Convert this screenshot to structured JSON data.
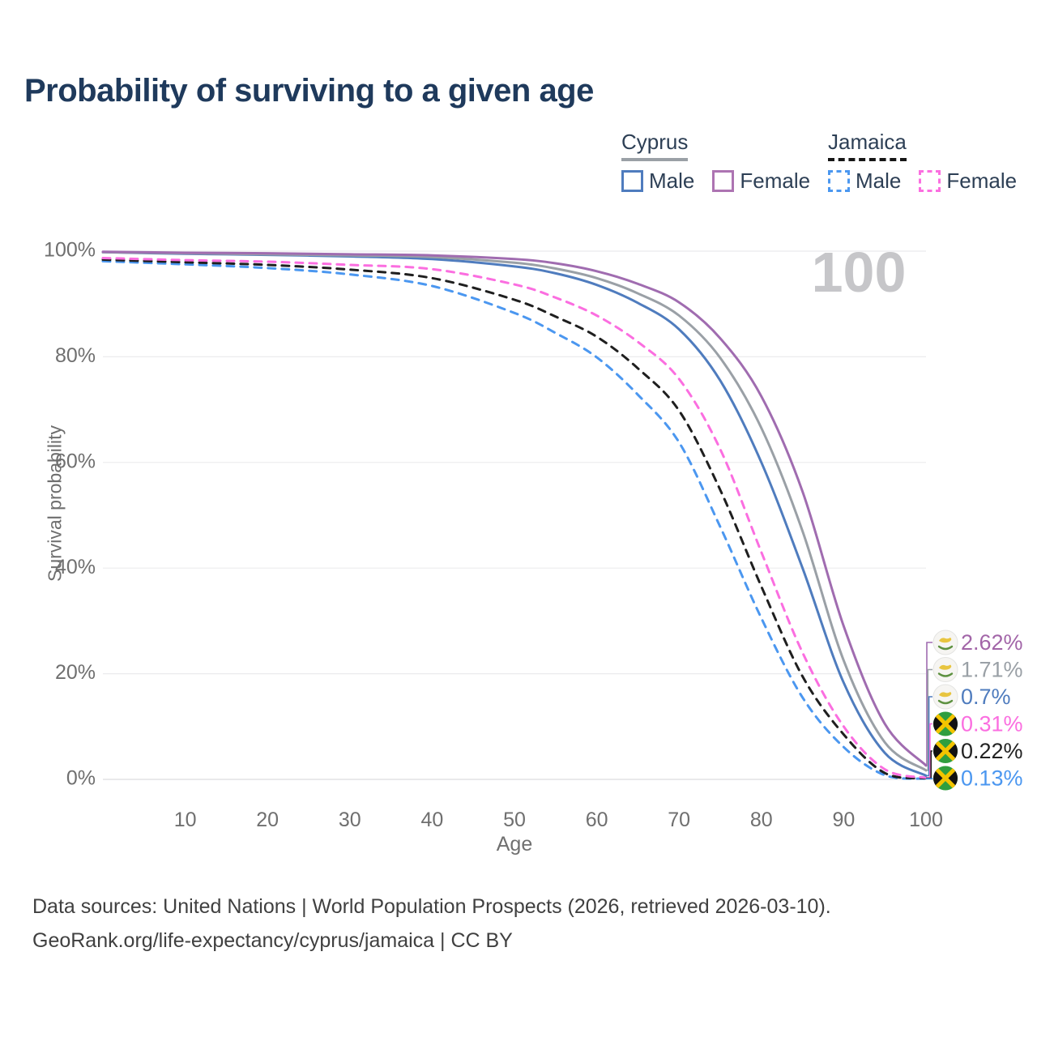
{
  "title": "Probability of surviving to a given age",
  "legend": {
    "groups": [
      {
        "label": "Cyprus",
        "line_style": "solid",
        "underline_color": "#9aa0a6",
        "items": [
          {
            "label": "Male",
            "color": "#4f7cbe"
          },
          {
            "label": "Female",
            "color": "#ad74b2"
          }
        ]
      },
      {
        "label": "Jamaica",
        "line_style": "dashed",
        "underline_color": "#161616",
        "items": [
          {
            "label": "Male",
            "color": "#4b97f0"
          },
          {
            "label": "Female",
            "color": "#fb6ee0"
          }
        ]
      }
    ]
  },
  "age_indicator": "100",
  "chart_data": {
    "type": "line",
    "title": "Probability of surviving to a given age",
    "x": [
      0,
      10,
      20,
      30,
      40,
      50,
      55,
      60,
      65,
      70,
      75,
      80,
      85,
      90,
      95,
      100
    ],
    "x_axis": {
      "label": "Age",
      "min": 0,
      "max": 100,
      "ticks": [
        10,
        20,
        30,
        40,
        50,
        60,
        70,
        80,
        90,
        100
      ]
    },
    "y_axis": {
      "label": "Survival probability",
      "min": 0,
      "max": 100,
      "ticks": [
        "0%",
        "20%",
        "40%",
        "60%",
        "80%",
        "100%"
      ],
      "tick_values": [
        0,
        20,
        40,
        60,
        80,
        100
      ]
    },
    "grid": true,
    "legend_position": "top-right",
    "series": [
      {
        "name": "Cyprus Female",
        "country": "cyprus",
        "sex": "female",
        "dash": "solid",
        "color": "#a06cb0",
        "label_color": "#a265a8",
        "end_label": "2.62%",
        "flag": "cyprus",
        "values": [
          99.9,
          99.7,
          99.6,
          99.4,
          99.2,
          98.5,
          97.7,
          96.2,
          93.8,
          90.3,
          83.5,
          72.5,
          54.5,
          29.0,
          10.5,
          2.62
        ]
      },
      {
        "name": "Cyprus Both sexes",
        "country": "cyprus",
        "sex": "both",
        "dash": "solid",
        "color": "#9aa0a6",
        "label_color": "#9aa0a6",
        "end_label": "1.71%",
        "flag": "cyprus",
        "values": [
          99.8,
          99.6,
          99.4,
          99.2,
          98.9,
          97.8,
          96.7,
          94.9,
          92.0,
          87.8,
          79.8,
          66.5,
          47.0,
          22.5,
          7.0,
          1.71
        ]
      },
      {
        "name": "Cyprus Male",
        "country": "cyprus",
        "sex": "male",
        "dash": "solid",
        "color": "#4f7cbe",
        "label_color": "#4f7cbe",
        "end_label": "0.7%",
        "flag": "cyprus",
        "values": [
          99.8,
          99.5,
          99.3,
          99.0,
          98.5,
          97.1,
          95.8,
          93.6,
          90.2,
          85.2,
          75.5,
          60.0,
          40.0,
          18.3,
          5.0,
          0.7
        ]
      },
      {
        "name": "Jamaica Female",
        "country": "jamaica",
        "sex": "female",
        "dash": "dashed",
        "color": "#fb6ee0",
        "label_color": "#fb6ee0",
        "end_label": "0.31%",
        "flag": "jamaica",
        "values": [
          98.7,
          98.3,
          98.0,
          97.4,
          96.6,
          93.7,
          91.2,
          87.8,
          82.8,
          75.8,
          62.5,
          43.0,
          24.0,
          10.0,
          1.9,
          0.31
        ]
      },
      {
        "name": "Jamaica Both sexes",
        "country": "jamaica",
        "sex": "both",
        "dash": "dashed",
        "color": "#1f1f1f",
        "label_color": "#222222",
        "end_label": "0.22%",
        "flag": "jamaica",
        "values": [
          98.4,
          97.9,
          97.4,
          96.5,
          94.9,
          90.8,
          87.6,
          83.8,
          77.8,
          69.8,
          54.8,
          36.5,
          19.5,
          8.5,
          1.2,
          0.22
        ]
      },
      {
        "name": "Jamaica Male",
        "country": "jamaica",
        "sex": "male",
        "dash": "dashed",
        "color": "#4b97f0",
        "label_color": "#4b97f0",
        "end_label": "0.13%",
        "flag": "jamaica",
        "values": [
          98.1,
          97.5,
          96.8,
          95.6,
          93.4,
          88.3,
          84.5,
          79.9,
          72.8,
          63.8,
          47.8,
          30.5,
          15.5,
          6.1,
          0.8,
          0.13
        ]
      }
    ],
    "hover_age_readout": "100"
  },
  "footer": {
    "line1": "Data sources: United Nations | World Population Prospects (2026, retrieved 2026-03-10).",
    "line2": "GeoRank.org/life-expectancy/cyprus/jamaica | CC BY"
  },
  "colors": {
    "title": "#1f3a5c",
    "grid": "#ebebed",
    "axis_text": "#6f6f6f",
    "age_indicator": "#c6c6c9",
    "footer_text": "#404040",
    "background": "#ffffff"
  }
}
